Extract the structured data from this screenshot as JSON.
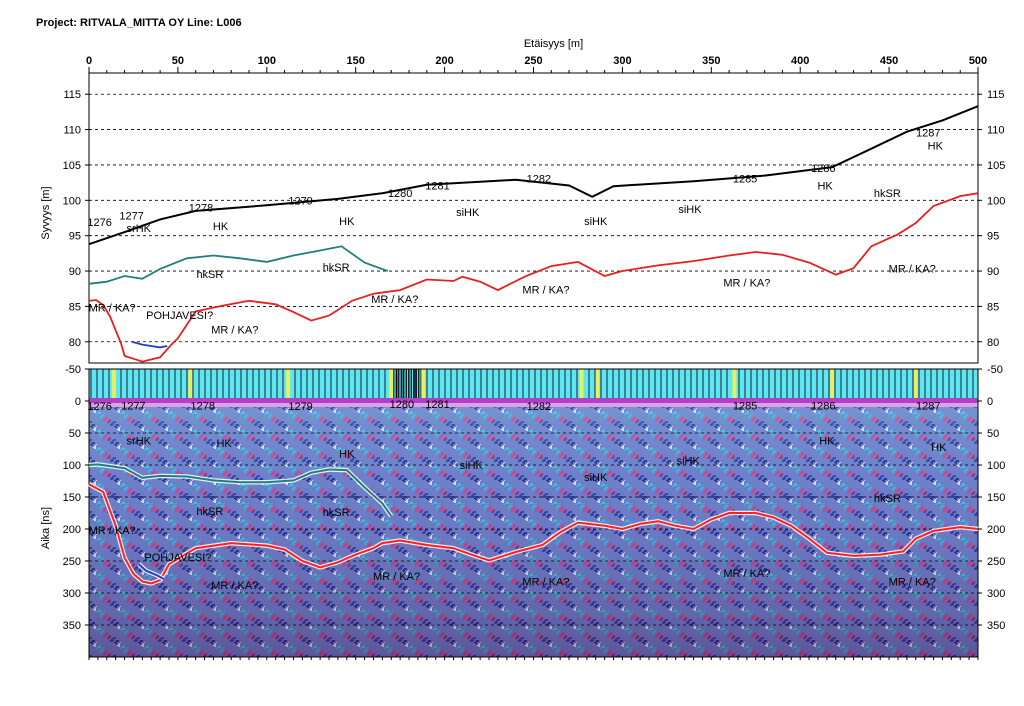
{
  "header": {
    "title": "Project: RITVALA_MITTA OY  Line: L006"
  },
  "chart_data": {
    "type": "line",
    "xlabel": "Etäisyys [m]",
    "xlim": [
      0,
      500
    ],
    "x_ticks": [
      0,
      50,
      100,
      150,
      200,
      250,
      300,
      350,
      400,
      450,
      500
    ],
    "elevation_panel": {
      "ylabel": "Syvyys [m]",
      "ylim": [
        77,
        118
      ],
      "y_ticks": [
        115,
        110,
        105,
        100,
        95,
        90,
        85,
        80
      ],
      "grid": "dashed-horizontal",
      "series": [
        {
          "role": "surface",
          "color": "#000000",
          "points": [
            [
              0,
              93.8
            ],
            [
              20,
              95.5
            ],
            [
              40,
              97.3
            ],
            [
              60,
              98.5
            ],
            [
              100,
              99.3
            ],
            [
              140,
              100.2
            ],
            [
              165,
              101.0
            ],
            [
              190,
              102.2
            ],
            [
              240,
              102.9
            ],
            [
              270,
              102.1
            ],
            [
              283,
              100.5
            ],
            [
              295,
              102.0
            ],
            [
              340,
              102.7
            ],
            [
              380,
              103.5
            ],
            [
              418,
              104.7
            ],
            [
              440,
              107.3
            ],
            [
              460,
              109.7
            ],
            [
              480,
              111.3
            ],
            [
              500,
              113.3
            ]
          ]
        },
        {
          "role": "layer-green",
          "color": "#1f7f7f",
          "points": [
            [
              0,
              88.2
            ],
            [
              10,
              88.5
            ],
            [
              20,
              89.3
            ],
            [
              30,
              88.9
            ],
            [
              40,
              90.3
            ],
            [
              55,
              91.8
            ],
            [
              70,
              92.2
            ],
            [
              85,
              91.8
            ],
            [
              100,
              91.3
            ],
            [
              115,
              92.2
            ],
            [
              130,
              92.9
            ],
            [
              142,
              93.5
            ],
            [
              155,
              91.2
            ],
            [
              168,
              90.0
            ]
          ]
        },
        {
          "role": "bedrock-red",
          "color": "#e52020",
          "points": [
            [
              0,
              85.8
            ],
            [
              4,
              85.9
            ],
            [
              8,
              85.2
            ],
            [
              12,
              83.5
            ],
            [
              16,
              81.0
            ],
            [
              18,
              79.8
            ],
            [
              20,
              78.0
            ],
            [
              30,
              77.2
            ],
            [
              40,
              77.8
            ],
            [
              46,
              79.5
            ],
            [
              50,
              80.5
            ],
            [
              60,
              84.3
            ],
            [
              75,
              85.1
            ],
            [
              90,
              85.8
            ],
            [
              105,
              85.3
            ],
            [
              115,
              84.2
            ],
            [
              125,
              83.0
            ],
            [
              135,
              83.7
            ],
            [
              148,
              85.8
            ],
            [
              160,
              86.8
            ],
            [
              175,
              87.3
            ],
            [
              190,
              88.8
            ],
            [
              205,
              88.6
            ],
            [
              210,
              89.2
            ],
            [
              220,
              88.5
            ],
            [
              230,
              87.3
            ],
            [
              245,
              89.2
            ],
            [
              260,
              90.7
            ],
            [
              275,
              91.3
            ],
            [
              290,
              89.3
            ],
            [
              300,
              90.0
            ],
            [
              320,
              90.8
            ],
            [
              340,
              91.4
            ],
            [
              360,
              92.2
            ],
            [
              375,
              92.7
            ],
            [
              390,
              92.3
            ],
            [
              405,
              91.2
            ],
            [
              420,
              89.5
            ],
            [
              430,
              90.4
            ],
            [
              440,
              93.5
            ],
            [
              455,
              95.2
            ],
            [
              465,
              96.8
            ],
            [
              475,
              99.2
            ],
            [
              490,
              100.6
            ],
            [
              500,
              101.0
            ]
          ]
        },
        {
          "role": "pohjavesi-blue",
          "color": "#1f3fd0",
          "points": [
            [
              24,
              80.0
            ],
            [
              30,
              79.6
            ],
            [
              40,
              79.2
            ],
            [
              44,
              79.4
            ]
          ]
        }
      ],
      "annotations": [
        {
          "text": "1276",
          "x": 6,
          "y": 96.4
        },
        {
          "text": "1277",
          "x": 24,
          "y": 97.3
        },
        {
          "text": "srHK",
          "x": 28,
          "y": 95.5
        },
        {
          "text": "1278",
          "x": 63,
          "y": 98.4
        },
        {
          "text": "HK",
          "x": 74,
          "y": 95.8
        },
        {
          "text": "1279",
          "x": 119,
          "y": 99.4
        },
        {
          "text": "HK",
          "x": 145,
          "y": 96.5
        },
        {
          "text": "1280",
          "x": 175,
          "y": 100.5
        },
        {
          "text": "1281",
          "x": 196,
          "y": 101.5
        },
        {
          "text": "siHK",
          "x": 213,
          "y": 97.8
        },
        {
          "text": "1282",
          "x": 253,
          "y": 102.5
        },
        {
          "text": "siHK",
          "x": 285,
          "y": 96.5
        },
        {
          "text": "siHK",
          "x": 338,
          "y": 98.2
        },
        {
          "text": "1285",
          "x": 369,
          "y": 102.5
        },
        {
          "text": "1286",
          "x": 413,
          "y": 104.0
        },
        {
          "text": "HK",
          "x": 414,
          "y": 101.5
        },
        {
          "text": "hkSR",
          "x": 449,
          "y": 100.5
        },
        {
          "text": "1287",
          "x": 472,
          "y": 109.0
        },
        {
          "text": "HK",
          "x": 476,
          "y": 107.2
        },
        {
          "text": "hkSR",
          "x": 68,
          "y": 89.0
        },
        {
          "text": "hkSR",
          "x": 139,
          "y": 90.0
        },
        {
          "text": "MR / KA?",
          "x": 13,
          "y": 84.3
        },
        {
          "text": "POHJAVESI?",
          "x": 51,
          "y": 83.2
        },
        {
          "text": "MR / KA?",
          "x": 82,
          "y": 81.2
        },
        {
          "text": "MR / KA?",
          "x": 172,
          "y": 85.5
        },
        {
          "text": "MR / KA?",
          "x": 257,
          "y": 86.8
        },
        {
          "text": "MR / KA?",
          "x": 370,
          "y": 87.8
        },
        {
          "text": "MR / KA?",
          "x": 463,
          "y": 89.8
        }
      ]
    },
    "radar_panel": {
      "ylabel": "Aika [ns]",
      "ylim": [
        -50,
        400
      ],
      "y_ticks": [
        -50,
        0,
        50,
        100,
        150,
        200,
        250,
        300,
        350
      ],
      "marker_positions": [
        14,
        57,
        112,
        170,
        188,
        277,
        286,
        363,
        418,
        465
      ],
      "series": [
        {
          "role": "layer-green",
          "color": "#1f7f7f",
          "points": [
            [
              0,
              100
            ],
            [
              5,
              99
            ],
            [
              20,
              105
            ],
            [
              30,
              120
            ],
            [
              40,
              117
            ],
            [
              55,
              118
            ],
            [
              70,
              124
            ],
            [
              85,
              127
            ],
            [
              100,
              127
            ],
            [
              115,
              124
            ],
            [
              125,
              112
            ],
            [
              135,
              107
            ],
            [
              145,
              108
            ],
            [
              155,
              135
            ],
            [
              165,
              160
            ],
            [
              170,
              180
            ]
          ]
        },
        {
          "role": "bedrock-red",
          "color": "#ff2020",
          "points": [
            [
              0,
              130
            ],
            [
              8,
              142
            ],
            [
              15,
              195
            ],
            [
              20,
              245
            ],
            [
              25,
              270
            ],
            [
              30,
              282
            ],
            [
              35,
              285
            ],
            [
              40,
              280
            ],
            [
              45,
              255
            ],
            [
              60,
              230
            ],
            [
              80,
              222
            ],
            [
              100,
              226
            ],
            [
              110,
              232
            ],
            [
              120,
              250
            ],
            [
              130,
              260
            ],
            [
              140,
              252
            ],
            [
              150,
              240
            ],
            [
              160,
              230
            ],
            [
              165,
              222
            ],
            [
              175,
              218
            ],
            [
              190,
              225
            ],
            [
              205,
              230
            ],
            [
              215,
              240
            ],
            [
              225,
              249
            ],
            [
              240,
              236
            ],
            [
              255,
              225
            ],
            [
              265,
              205
            ],
            [
              275,
              190
            ],
            [
              290,
              195
            ],
            [
              300,
              200
            ],
            [
              310,
              192
            ],
            [
              320,
              188
            ],
            [
              330,
              195
            ],
            [
              340,
              200
            ],
            [
              350,
              185
            ],
            [
              360,
              175
            ],
            [
              375,
              175
            ],
            [
              385,
              182
            ],
            [
              395,
              195
            ],
            [
              405,
              215
            ],
            [
              415,
              237
            ],
            [
              430,
              242
            ],
            [
              445,
              240
            ],
            [
              458,
              235
            ],
            [
              465,
              215
            ],
            [
              475,
              203
            ],
            [
              490,
              197
            ],
            [
              500,
              200
            ]
          ]
        },
        {
          "role": "pohjavesi-blue",
          "color": "#1f3fd0",
          "points": [
            [
              28,
              255
            ],
            [
              32,
              265
            ],
            [
              38,
              272
            ],
            [
              42,
              278
            ]
          ]
        }
      ],
      "annotations": [
        {
          "text": "1276",
          "x": 6,
          "y": 14
        },
        {
          "text": "1277",
          "x": 25,
          "y": 13
        },
        {
          "text": "1278",
          "x": 64,
          "y": 13
        },
        {
          "text": "1279",
          "x": 119,
          "y": 14
        },
        {
          "text": "1280",
          "x": 176,
          "y": 11
        },
        {
          "text": "1281",
          "x": 196,
          "y": 11
        },
        {
          "text": "1282",
          "x": 253,
          "y": 14
        },
        {
          "text": "1285",
          "x": 369,
          "y": 13
        },
        {
          "text": "1286",
          "x": 413,
          "y": 13
        },
        {
          "text": "1287",
          "x": 472,
          "y": 13
        },
        {
          "text": "srHK",
          "x": 28,
          "y": 68
        },
        {
          "text": "HK",
          "x": 76,
          "y": 72
        },
        {
          "text": "HK",
          "x": 145,
          "y": 88
        },
        {
          "text": "siHK",
          "x": 215,
          "y": 106
        },
        {
          "text": "siHK",
          "x": 285,
          "y": 125
        },
        {
          "text": "siHK",
          "x": 337,
          "y": 99
        },
        {
          "text": "HK",
          "x": 415,
          "y": 68
        },
        {
          "text": "HK",
          "x": 478,
          "y": 78
        },
        {
          "text": "hkSR",
          "x": 68,
          "y": 178
        },
        {
          "text": "hkSR",
          "x": 139,
          "y": 180
        },
        {
          "text": "hkSR",
          "x": 449,
          "y": 158
        },
        {
          "text": "MR / KA?",
          "x": 13,
          "y": 208
        },
        {
          "text": "POHJAVESI?",
          "x": 50,
          "y": 250
        },
        {
          "text": "MR / KA?",
          "x": 82,
          "y": 294
        },
        {
          "text": "MR / KA?",
          "x": 173,
          "y": 280
        },
        {
          "text": "MR / KA?",
          "x": 257,
          "y": 288
        },
        {
          "text": "MR / KA?",
          "x": 370,
          "y": 275
        },
        {
          "text": "MR / KA?",
          "x": 463,
          "y": 288
        }
      ]
    }
  }
}
